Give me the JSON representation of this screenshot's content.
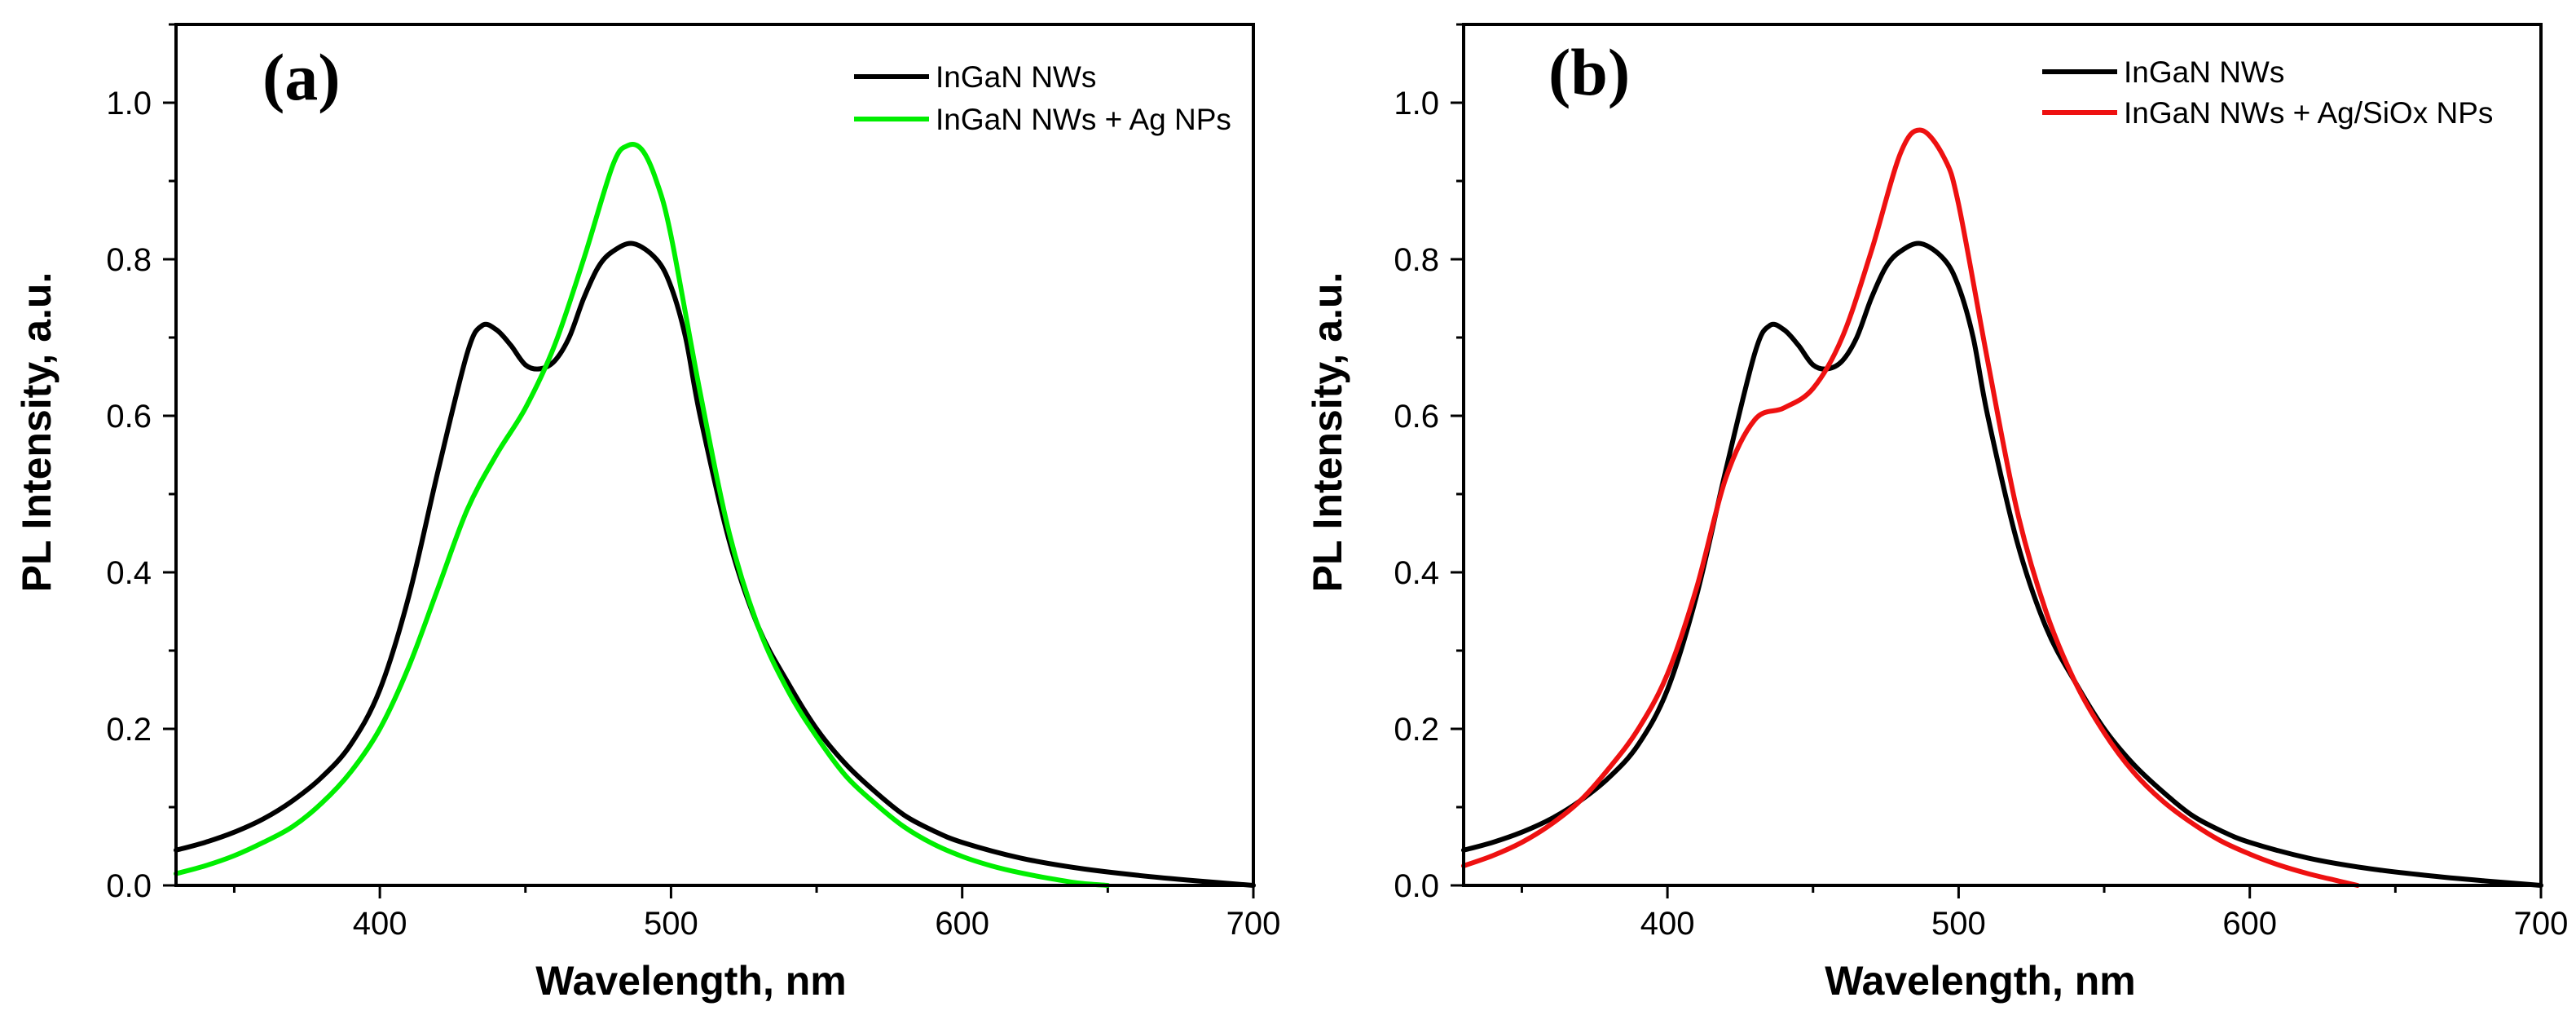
{
  "chart_data": [
    {
      "type": "line",
      "panel_label": "(a)",
      "xlabel": "Wavelength, nm",
      "ylabel": "PL Intensity, a.u.",
      "xlim": [
        330,
        700
      ],
      "ylim": [
        0,
        1.1
      ],
      "x_ticks": [
        400,
        500,
        600,
        700
      ],
      "x_tick_labels": [
        "400",
        "500",
        "600",
        "700"
      ],
      "y_ticks": [
        0.0,
        0.2,
        0.4,
        0.6,
        0.8,
        1.0
      ],
      "y_tick_labels": [
        "0.0",
        "0.2",
        "0.4",
        "0.6",
        "0.8",
        "1.0"
      ],
      "grid": false,
      "legend_position": "top-right",
      "series": [
        {
          "name": "InGaN NWs",
          "color": "#000000",
          "points": [
            [
              330,
              0.045
            ],
            [
              340,
              0.055
            ],
            [
              350,
              0.068
            ],
            [
              360,
              0.085
            ],
            [
              370,
              0.108
            ],
            [
              380,
              0.138
            ],
            [
              390,
              0.18
            ],
            [
              400,
              0.25
            ],
            [
              410,
              0.37
            ],
            [
              420,
              0.53
            ],
            [
              430,
              0.68
            ],
            [
              435,
              0.715
            ],
            [
              440,
              0.71
            ],
            [
              445,
              0.69
            ],
            [
              450,
              0.665
            ],
            [
              455,
              0.66
            ],
            [
              460,
              0.67
            ],
            [
              465,
              0.7
            ],
            [
              470,
              0.75
            ],
            [
              475,
              0.79
            ],
            [
              480,
              0.81
            ],
            [
              487,
              0.82
            ],
            [
              495,
              0.8
            ],
            [
              500,
              0.765
            ],
            [
              505,
              0.7
            ],
            [
              510,
              0.6
            ],
            [
              520,
              0.44
            ],
            [
              530,
              0.33
            ],
            [
              540,
              0.26
            ],
            [
              550,
              0.2
            ],
            [
              560,
              0.155
            ],
            [
              570,
              0.12
            ],
            [
              580,
              0.09
            ],
            [
              590,
              0.07
            ],
            [
              600,
              0.055
            ],
            [
              620,
              0.035
            ],
            [
              640,
              0.022
            ],
            [
              660,
              0.013
            ],
            [
              680,
              0.006
            ],
            [
              700,
              0.0
            ]
          ]
        },
        {
          "name": "InGaN NWs + Ag NPs",
          "color": "#00ee00",
          "points": [
            [
              330,
              0.015
            ],
            [
              340,
              0.025
            ],
            [
              350,
              0.038
            ],
            [
              360,
              0.055
            ],
            [
              370,
              0.075
            ],
            [
              380,
              0.105
            ],
            [
              390,
              0.145
            ],
            [
              400,
              0.2
            ],
            [
              410,
              0.28
            ],
            [
              420,
              0.38
            ],
            [
              430,
              0.48
            ],
            [
              440,
              0.55
            ],
            [
              450,
              0.61
            ],
            [
              460,
              0.69
            ],
            [
              470,
              0.8
            ],
            [
              480,
              0.92
            ],
            [
              485,
              0.945
            ],
            [
              490,
              0.94
            ],
            [
              495,
              0.9
            ],
            [
              500,
              0.83
            ],
            [
              510,
              0.63
            ],
            [
              520,
              0.45
            ],
            [
              530,
              0.33
            ],
            [
              540,
              0.25
            ],
            [
              550,
              0.19
            ],
            [
              560,
              0.14
            ],
            [
              570,
              0.105
            ],
            [
              580,
              0.075
            ],
            [
              590,
              0.053
            ],
            [
              600,
              0.037
            ],
            [
              610,
              0.025
            ],
            [
              620,
              0.016
            ],
            [
              630,
              0.009
            ],
            [
              640,
              0.003
            ],
            [
              650,
              0.0
            ]
          ]
        }
      ]
    },
    {
      "type": "line",
      "panel_label": "(b)",
      "xlabel": "Wavelength, nm",
      "ylabel": "PL Intensity, a.u.",
      "xlim": [
        330,
        700
      ],
      "ylim": [
        0,
        1.1
      ],
      "x_ticks": [
        400,
        500,
        600,
        700
      ],
      "x_tick_labels": [
        "400",
        "500",
        "600",
        "700"
      ],
      "y_ticks": [
        0.0,
        0.2,
        0.4,
        0.6,
        0.8,
        1.0
      ],
      "y_tick_labels": [
        "0.0",
        "0.2",
        "0.4",
        "0.6",
        "0.8",
        "1.0"
      ],
      "grid": false,
      "legend_position": "top-right",
      "series": [
        {
          "name": "InGaN NWs",
          "color": "#000000",
          "points": [
            [
              330,
              0.045
            ],
            [
              340,
              0.055
            ],
            [
              350,
              0.068
            ],
            [
              360,
              0.085
            ],
            [
              370,
              0.108
            ],
            [
              380,
              0.138
            ],
            [
              390,
              0.18
            ],
            [
              400,
              0.25
            ],
            [
              410,
              0.37
            ],
            [
              420,
              0.53
            ],
            [
              430,
              0.68
            ],
            [
              435,
              0.715
            ],
            [
              440,
              0.71
            ],
            [
              445,
              0.69
            ],
            [
              450,
              0.665
            ],
            [
              455,
              0.66
            ],
            [
              460,
              0.67
            ],
            [
              465,
              0.7
            ],
            [
              470,
              0.75
            ],
            [
              475,
              0.79
            ],
            [
              480,
              0.81
            ],
            [
              487,
              0.82
            ],
            [
              495,
              0.8
            ],
            [
              500,
              0.765
            ],
            [
              505,
              0.7
            ],
            [
              510,
              0.6
            ],
            [
              520,
              0.44
            ],
            [
              530,
              0.33
            ],
            [
              540,
              0.26
            ],
            [
              550,
              0.2
            ],
            [
              560,
              0.155
            ],
            [
              570,
              0.12
            ],
            [
              580,
              0.09
            ],
            [
              590,
              0.07
            ],
            [
              600,
              0.055
            ],
            [
              620,
              0.035
            ],
            [
              640,
              0.022
            ],
            [
              660,
              0.013
            ],
            [
              680,
              0.006
            ],
            [
              700,
              0.0
            ]
          ]
        },
        {
          "name": "InGaN NWs + Ag/SiOx NPs",
          "color": "#ee1111",
          "points": [
            [
              330,
              0.025
            ],
            [
              340,
              0.038
            ],
            [
              350,
              0.055
            ],
            [
              360,
              0.078
            ],
            [
              370,
              0.108
            ],
            [
              380,
              0.15
            ],
            [
              390,
              0.2
            ],
            [
              400,
              0.27
            ],
            [
              410,
              0.38
            ],
            [
              420,
              0.52
            ],
            [
              430,
              0.595
            ],
            [
              440,
              0.61
            ],
            [
              450,
              0.635
            ],
            [
              460,
              0.7
            ],
            [
              470,
              0.81
            ],
            [
              480,
              0.935
            ],
            [
              487,
              0.965
            ],
            [
              495,
              0.93
            ],
            [
              500,
              0.87
            ],
            [
              510,
              0.67
            ],
            [
              520,
              0.48
            ],
            [
              530,
              0.35
            ],
            [
              540,
              0.26
            ],
            [
              550,
              0.195
            ],
            [
              560,
              0.145
            ],
            [
              570,
              0.108
            ],
            [
              580,
              0.08
            ],
            [
              590,
              0.057
            ],
            [
              600,
              0.04
            ],
            [
              610,
              0.026
            ],
            [
              620,
              0.015
            ],
            [
              630,
              0.006
            ],
            [
              637,
              0.0
            ]
          ]
        }
      ]
    }
  ]
}
